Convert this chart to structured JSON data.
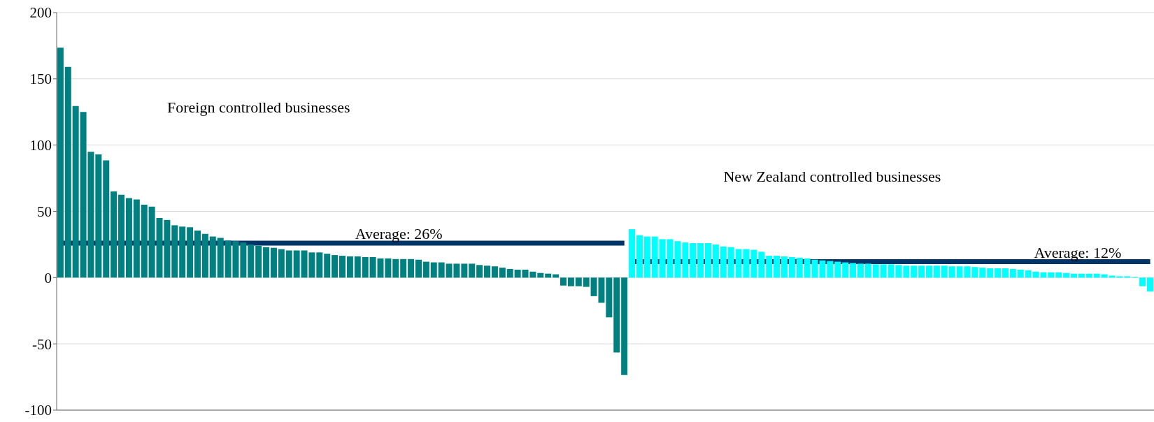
{
  "chart_data": {
    "type": "bar",
    "stacked": true,
    "categories": [
      null,
      null,
      null,
      null,
      null,
      null,
      null,
      null,
      null,
      null,
      null,
      null,
      null,
      null,
      null,
      null,
      null,
      null,
      null,
      null,
      null,
      null,
      null,
      null,
      null,
      null,
      null,
      null,
      null,
      null,
      null,
      null,
      null,
      null,
      null,
      null,
      null,
      null,
      null,
      null,
      null,
      null,
      null,
      null,
      null,
      null,
      null,
      null,
      null,
      null,
      null,
      null,
      null,
      null,
      null,
      null,
      null,
      null,
      null,
      null,
      null,
      null,
      null,
      null,
      null,
      null,
      null,
      null,
      null,
      null,
      null,
      null,
      null,
      null,
      null,
      null,
      null,
      null,
      null,
      null,
      null,
      null,
      null,
      null,
      null,
      null,
      null,
      null,
      null,
      null,
      null,
      null,
      null,
      null,
      null,
      null,
      null,
      null,
      null,
      null,
      null,
      null,
      null,
      null,
      null,
      null,
      null,
      null,
      null,
      null,
      null,
      null,
      null,
      null,
      null,
      null,
      null,
      null,
      null,
      null,
      null,
      null,
      null,
      null,
      null,
      null,
      null,
      null,
      null,
      null,
      null,
      null,
      null,
      null,
      null,
      null,
      null,
      null,
      null,
      null,
      null,
      null,
      null,
      null
    ],
    "series": [
      {
        "color": "#008080",
        "values": [
          173.5,
          159,
          129.5,
          125,
          95,
          93,
          88.5,
          65,
          62.5,
          60,
          59,
          55,
          53.5,
          45,
          43.5,
          39.5,
          38.5,
          38,
          35.5,
          33,
          31,
          30,
          28,
          27.5,
          26.5,
          25,
          24,
          23,
          22.5,
          21.5,
          20.5,
          20.5,
          20.5,
          19,
          19,
          18,
          17,
          16.5,
          16,
          16,
          15.5,
          15.5,
          14.5,
          14.5,
          14,
          14,
          14,
          13.5,
          12,
          11.5,
          11.5,
          10.5,
          10.5,
          10.5,
          10.5,
          9.5,
          9,
          8.5,
          7.5,
          6.5,
          6,
          6,
          4.5,
          3.5,
          3,
          2.5,
          -6,
          -6.5,
          -6.5,
          -7,
          -14,
          -19,
          -30,
          -56.5,
          -73.5,
          null,
          null,
          null,
          null,
          null,
          null,
          null,
          null,
          null,
          null,
          null,
          null,
          null,
          null,
          null,
          null,
          null,
          null,
          null,
          null,
          null,
          null,
          null,
          null,
          null,
          null,
          null,
          null,
          null,
          null,
          null,
          null,
          null,
          null,
          null,
          null,
          null,
          null,
          null,
          null,
          null,
          null,
          null,
          null,
          null,
          null,
          null,
          null,
          null,
          null,
          null,
          null,
          null,
          null,
          null,
          null,
          null,
          null,
          null,
          null,
          null,
          null,
          null,
          null,
          null,
          null,
          null,
          null,
          null
        ]
      },
      {
        "color": "#00ffff",
        "values": [
          null,
          null,
          null,
          null,
          null,
          null,
          null,
          null,
          null,
          null,
          null,
          null,
          null,
          null,
          null,
          null,
          null,
          null,
          null,
          null,
          null,
          null,
          null,
          null,
          null,
          null,
          null,
          null,
          null,
          null,
          null,
          null,
          null,
          null,
          null,
          null,
          null,
          null,
          null,
          null,
          null,
          null,
          null,
          null,
          null,
          null,
          null,
          null,
          null,
          null,
          null,
          null,
          null,
          null,
          null,
          null,
          null,
          null,
          null,
          null,
          null,
          null,
          null,
          null,
          null,
          null,
          null,
          null,
          null,
          null,
          null,
          null,
          null,
          null,
          null,
          36.5,
          32,
          31,
          31,
          29,
          29,
          27.5,
          26.5,
          26,
          26,
          26,
          25,
          23.5,
          23,
          21.5,
          21.5,
          21,
          19.5,
          16.5,
          16.5,
          16,
          15.5,
          15,
          14.5,
          13.5,
          13,
          12.5,
          12,
          11.5,
          11,
          10.5,
          10.5,
          10,
          10,
          10,
          9.5,
          9,
          9,
          9,
          9,
          9,
          9,
          8.5,
          8.5,
          8.5,
          8,
          7.5,
          7,
          7,
          7,
          6.5,
          6,
          5.5,
          4.5,
          4,
          4,
          4,
          3.5,
          3,
          3,
          3,
          3,
          2.5,
          1.5,
          1,
          1,
          0.5,
          -6.5,
          -10.5
        ]
      }
    ],
    "annotations": [
      "Foreign controlled businesses",
      "New Zealand controlled businesses"
    ],
    "ylim": [
      -100,
      200
    ],
    "yticks": [
      -100,
      -50,
      0,
      50,
      100,
      150,
      200
    ],
    "grid": "y",
    "ref_lines": [
      {
        "axis": "y",
        "value": 26,
        "label": "Average: 26%",
        "color": "#003366"
      },
      {
        "axis": "y",
        "value": 12,
        "label": "Average: 12%",
        "color": "#003366"
      }
    ]
  }
}
